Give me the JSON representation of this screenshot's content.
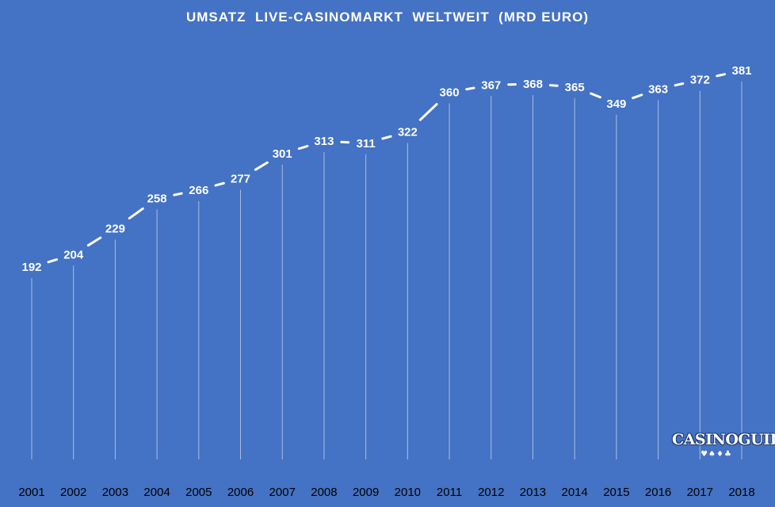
{
  "chart_data": {
    "type": "line",
    "title": "UMSATZ  LIVE-CASINOMARKT  WELTWEIT  (MRD EURO)",
    "categories": [
      "2001",
      "2002",
      "2003",
      "2004",
      "2005",
      "2006",
      "2007",
      "2008",
      "2009",
      "2010",
      "2011",
      "2012",
      "2013",
      "2014",
      "2015",
      "2016",
      "2017",
      "2018"
    ],
    "series": [
      {
        "values": [
          192,
          204,
          229,
          258,
          266,
          277,
          301,
          313,
          311,
          322,
          360,
          367,
          368,
          365,
          349,
          363,
          372,
          381
        ]
      }
    ],
    "ylim": [
      0,
      400
    ],
    "grid": "vertical drop lines",
    "colors": {
      "background": "#4472c4",
      "line": "#ffffff",
      "tick_text": "#000000"
    }
  },
  "logo": {
    "text": "CASINOGUIDE",
    "suits": "♥♠♦♣"
  }
}
